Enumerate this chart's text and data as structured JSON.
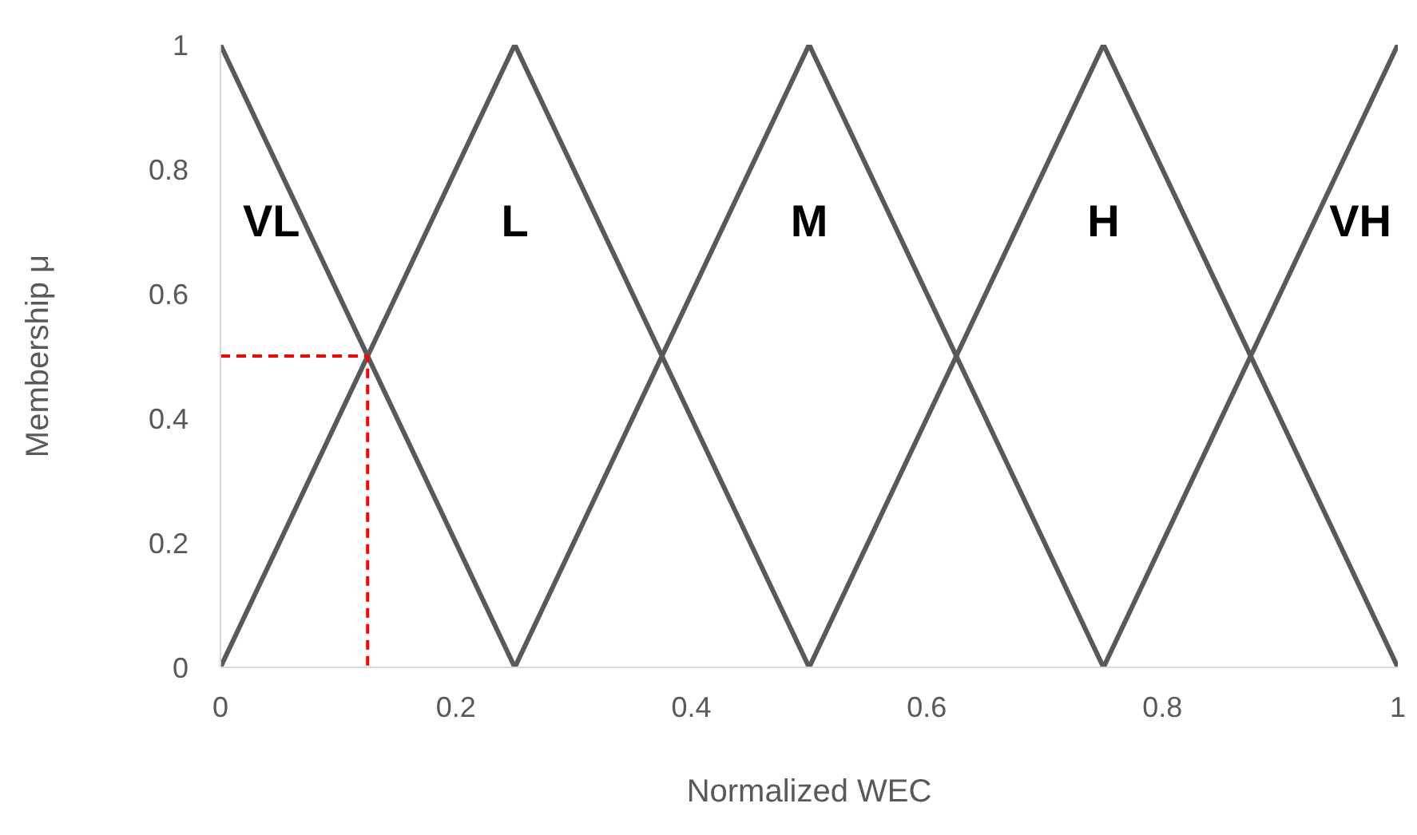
{
  "chart_data": {
    "type": "line",
    "xlabel": "Normalized WEC",
    "ylabel": "Membership μ",
    "xlim": [
      0,
      1
    ],
    "ylim": [
      0,
      1
    ],
    "xticks": [
      0,
      0.2,
      0.4,
      0.6,
      0.8,
      1
    ],
    "yticks": [
      0,
      0.2,
      0.4,
      0.6,
      0.8,
      1
    ],
    "line_style": "solid",
    "series": [
      {
        "name": "VL",
        "color": "#595959",
        "x": [
          0,
          0.25
        ],
        "values": [
          1,
          0
        ]
      },
      {
        "name": "L",
        "color": "#595959",
        "x": [
          0,
          0.25,
          0.5
        ],
        "values": [
          0,
          1,
          0
        ]
      },
      {
        "name": "M",
        "color": "#595959",
        "x": [
          0.25,
          0.5,
          0.75
        ],
        "values": [
          0,
          1,
          0
        ]
      },
      {
        "name": "H",
        "color": "#595959",
        "x": [
          0.5,
          0.75,
          1
        ],
        "values": [
          0,
          1,
          0
        ]
      },
      {
        "name": "VH",
        "color": "#595959",
        "x": [
          0.75,
          1
        ],
        "values": [
          0,
          1
        ]
      },
      {
        "color": "#ff0000",
        "line_style": "dashed",
        "x": [
          0,
          0.125,
          0.125
        ],
        "values": [
          0.5,
          0.5,
          0
        ]
      }
    ]
  }
}
